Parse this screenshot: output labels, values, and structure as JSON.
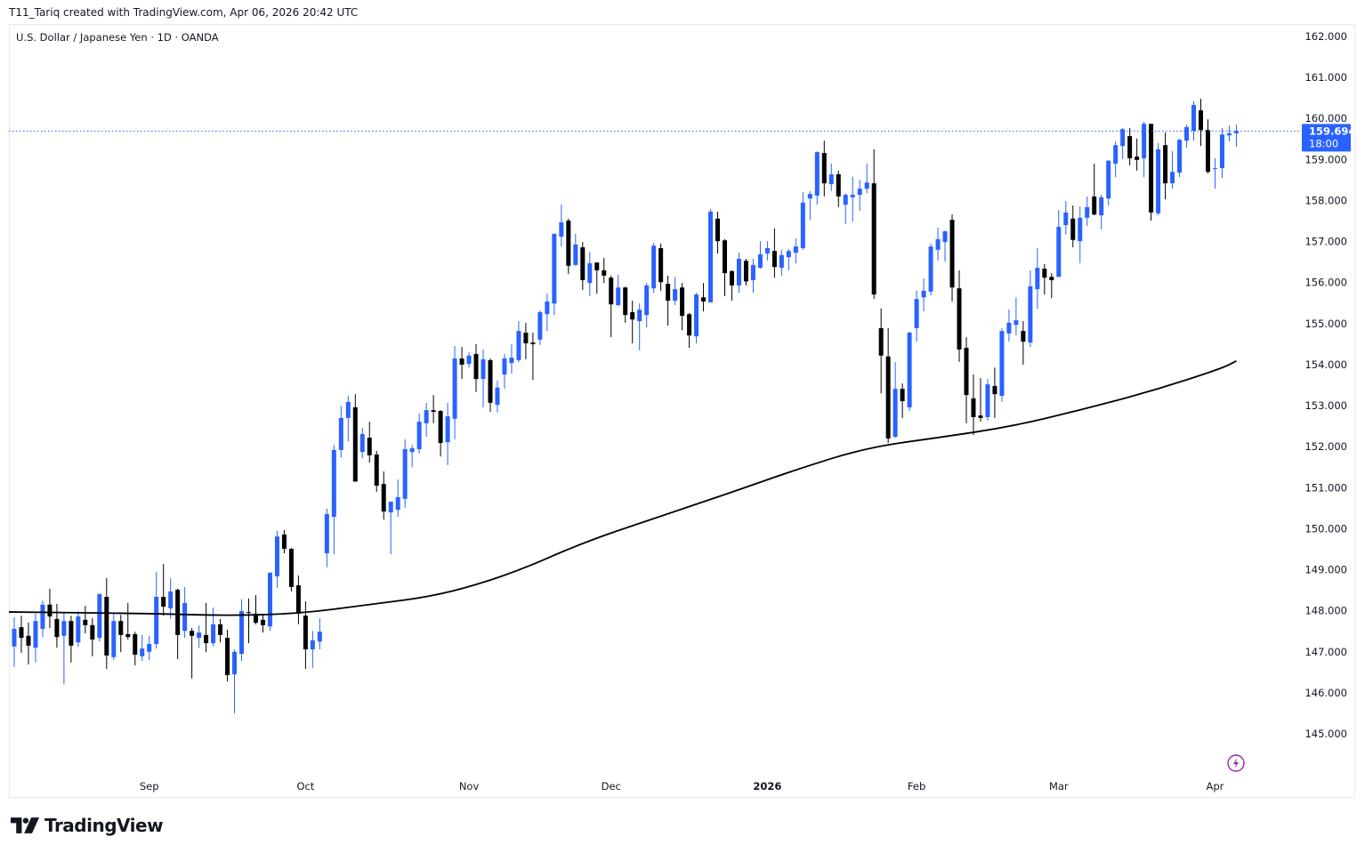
{
  "header": {
    "attribution": "T11_Tariq created with TradingView.com, Apr 06, 2026 20:42 UTC"
  },
  "symbol": {
    "title": "U.S. Dollar / Japanese Yen · 1D · OANDA"
  },
  "logo": {
    "text": "TradingView"
  },
  "current_price": {
    "value": "159.694",
    "countdown": "18:00",
    "color": "#2962ff"
  },
  "colors": {
    "up": "#2962ff",
    "down": "#000000",
    "moving_average": "#000000",
    "alert_icon": "#9c27b0"
  },
  "icons": {
    "alert": "lightning-bolt-circle-icon"
  },
  "chart_data": {
    "type": "candlestick",
    "title": "U.S. Dollar / Japanese Yen · 1D · OANDA",
    "ylim": [
      144.3,
      162.3
    ],
    "y_ticks": [
      "162.000",
      "161.000",
      "160.000",
      "159.000",
      "158.000",
      "157.000",
      "156.000",
      "155.000",
      "154.000",
      "153.000",
      "152.000",
      "151.000",
      "150.000",
      "149.000",
      "148.000",
      "147.000",
      "146.000",
      "145.000"
    ],
    "x_ticks": [
      "Sep",
      "Oct",
      "Nov",
      "Dec",
      "2026",
      "Feb",
      "Mar",
      "Apr"
    ],
    "grid": false,
    "candle_format": [
      "open",
      "high",
      "low",
      "close"
    ],
    "candles": [
      [
        147.13,
        147.84,
        146.63,
        147.56
      ],
      [
        147.6,
        147.88,
        146.97,
        147.34
      ],
      [
        147.39,
        147.71,
        146.69,
        147.15
      ],
      [
        147.1,
        147.93,
        146.74,
        147.75
      ],
      [
        147.56,
        148.25,
        147.36,
        148.15
      ],
      [
        148.15,
        148.54,
        147.58,
        147.86
      ],
      [
        147.8,
        148.17,
        147.1,
        147.36
      ],
      [
        147.39,
        147.97,
        146.21,
        147.75
      ],
      [
        147.75,
        147.88,
        146.74,
        147.15
      ],
      [
        147.23,
        147.99,
        147.12,
        147.86
      ],
      [
        147.78,
        148.12,
        147.45,
        147.65
      ],
      [
        147.65,
        147.82,
        146.89,
        147.3
      ],
      [
        147.34,
        148.41,
        147.25,
        148.41
      ],
      [
        148.34,
        148.8,
        146.58,
        146.91
      ],
      [
        146.87,
        147.95,
        146.8,
        147.75
      ],
      [
        147.75,
        147.9,
        146.99,
        147.41
      ],
      [
        147.43,
        148.19,
        147.3,
        147.36
      ],
      [
        147.43,
        147.49,
        146.67,
        146.93
      ],
      [
        146.89,
        147.41,
        146.78,
        147.08
      ],
      [
        147.0,
        147.39,
        146.8,
        147.19
      ],
      [
        147.19,
        148.95,
        147.08,
        148.34
      ],
      [
        148.34,
        149.14,
        147.88,
        148.1
      ],
      [
        148.06,
        148.8,
        147.8,
        148.47
      ],
      [
        148.51,
        148.54,
        146.82,
        147.41
      ],
      [
        147.51,
        148.58,
        147.34,
        148.19
      ],
      [
        147.51,
        147.58,
        146.35,
        147.39
      ],
      [
        147.34,
        147.64,
        147.1,
        147.47
      ],
      [
        147.41,
        148.19,
        146.99,
        147.21
      ],
      [
        147.21,
        148.08,
        147.13,
        147.67
      ],
      [
        147.67,
        147.8,
        147.23,
        147.41
      ],
      [
        147.34,
        147.54,
        146.28,
        146.43
      ],
      [
        146.45,
        147.06,
        145.5,
        147.0
      ],
      [
        146.95,
        148.28,
        146.78,
        147.99
      ],
      [
        147.97,
        148.3,
        147.21,
        147.95
      ],
      [
        147.93,
        148.38,
        147.67,
        147.71
      ],
      [
        147.78,
        147.93,
        147.47,
        147.65
      ],
      [
        147.62,
        148.93,
        147.51,
        148.93
      ],
      [
        148.84,
        149.95,
        148.56,
        149.81
      ],
      [
        149.86,
        149.97,
        149.4,
        149.51
      ],
      [
        149.51,
        149.53,
        148.47,
        148.58
      ],
      [
        148.62,
        148.86,
        147.67,
        147.93
      ],
      [
        147.88,
        148.23,
        146.58,
        147.06
      ],
      [
        147.06,
        147.51,
        146.61,
        147.28
      ],
      [
        147.25,
        147.82,
        147.06,
        147.49
      ],
      [
        149.4,
        150.49,
        149.06,
        150.36
      ],
      [
        150.29,
        152.04,
        149.38,
        151.92
      ],
      [
        151.92,
        153.0,
        151.74,
        152.7
      ],
      [
        152.7,
        153.24,
        152.13,
        153.09
      ],
      [
        152.96,
        153.28,
        151.15,
        151.15
      ],
      [
        151.87,
        152.46,
        151.72,
        152.31
      ],
      [
        152.22,
        152.61,
        151.61,
        151.79
      ],
      [
        151.81,
        151.9,
        150.9,
        151.05
      ],
      [
        151.09,
        151.4,
        150.22,
        150.42
      ],
      [
        150.4,
        150.66,
        149.38,
        150.66
      ],
      [
        150.46,
        151.2,
        150.29,
        150.77
      ],
      [
        150.73,
        152.18,
        150.51,
        151.94
      ],
      [
        151.87,
        152.04,
        151.5,
        151.96
      ],
      [
        151.94,
        152.81,
        151.83,
        152.61
      ],
      [
        152.57,
        153.07,
        152.24,
        152.89
      ],
      [
        152.89,
        153.26,
        152.57,
        152.85
      ],
      [
        152.87,
        152.89,
        151.76,
        152.09
      ],
      [
        152.11,
        153.07,
        151.55,
        152.74
      ],
      [
        152.68,
        154.45,
        152.18,
        154.15
      ],
      [
        154.15,
        154.43,
        153.65,
        154.0
      ],
      [
        154.02,
        154.3,
        153.93,
        154.22
      ],
      [
        154.26,
        154.5,
        153.33,
        153.65
      ],
      [
        153.65,
        154.37,
        152.96,
        154.13
      ],
      [
        154.11,
        154.15,
        152.85,
        153.07
      ],
      [
        153.02,
        153.61,
        152.83,
        153.44
      ],
      [
        153.76,
        154.26,
        153.41,
        154.15
      ],
      [
        154.04,
        154.5,
        153.78,
        154.17
      ],
      [
        154.11,
        155.06,
        154.06,
        154.82
      ],
      [
        154.78,
        155.02,
        154.13,
        154.52
      ],
      [
        154.54,
        154.78,
        153.63,
        154.5
      ],
      [
        154.61,
        155.32,
        154.48,
        155.28
      ],
      [
        155.23,
        155.73,
        154.82,
        155.54
      ],
      [
        155.49,
        157.19,
        155.21,
        157.19
      ],
      [
        157.12,
        157.9,
        156.88,
        157.47
      ],
      [
        157.51,
        157.56,
        156.21,
        156.41
      ],
      [
        156.43,
        157.19,
        156.41,
        156.93
      ],
      [
        156.86,
        156.99,
        155.82,
        156.06
      ],
      [
        155.99,
        156.75,
        155.67,
        156.47
      ],
      [
        156.49,
        156.49,
        155.73,
        156.3
      ],
      [
        156.3,
        156.6,
        155.99,
        156.17
      ],
      [
        156.12,
        156.17,
        154.67,
        155.47
      ],
      [
        155.45,
        156.19,
        155.43,
        155.88
      ],
      [
        155.88,
        155.9,
        155.02,
        155.21
      ],
      [
        155.28,
        155.56,
        154.52,
        155.1
      ],
      [
        155.06,
        155.49,
        154.35,
        155.34
      ],
      [
        155.21,
        155.99,
        154.91,
        155.93
      ],
      [
        155.86,
        156.97,
        155.75,
        156.9
      ],
      [
        156.84,
        156.95,
        155.8,
        156.01
      ],
      [
        155.97,
        156.17,
        154.95,
        155.56
      ],
      [
        155.56,
        156.14,
        155.45,
        155.84
      ],
      [
        155.88,
        155.99,
        154.84,
        155.19
      ],
      [
        155.23,
        155.26,
        154.41,
        154.71
      ],
      [
        154.69,
        155.75,
        154.52,
        155.71
      ],
      [
        155.64,
        155.99,
        155.3,
        155.54
      ],
      [
        155.52,
        157.79,
        155.52,
        157.73
      ],
      [
        157.56,
        157.73,
        156.71,
        157.01
      ],
      [
        157.03,
        157.06,
        155.67,
        156.23
      ],
      [
        156.28,
        156.3,
        155.56,
        155.93
      ],
      [
        155.93,
        156.73,
        155.75,
        156.58
      ],
      [
        156.53,
        156.58,
        155.93,
        156.03
      ],
      [
        156.06,
        156.58,
        155.75,
        156.43
      ],
      [
        156.36,
        157.01,
        156.34,
        156.69
      ],
      [
        156.71,
        157.01,
        156.54,
        156.84
      ],
      [
        156.77,
        157.32,
        156.12,
        156.38
      ],
      [
        156.36,
        156.8,
        156.17,
        156.67
      ],
      [
        156.62,
        156.82,
        156.3,
        156.77
      ],
      [
        156.73,
        157.08,
        156.47,
        156.88
      ],
      [
        156.84,
        158.21,
        156.8,
        157.95
      ],
      [
        158.05,
        158.23,
        157.53,
        158.16
      ],
      [
        158.12,
        159.2,
        157.9,
        159.18
      ],
      [
        159.16,
        159.46,
        158.1,
        158.42
      ],
      [
        158.4,
        158.9,
        158.23,
        158.64
      ],
      [
        158.64,
        158.73,
        157.84,
        158.1
      ],
      [
        157.9,
        158.18,
        157.43,
        158.14
      ],
      [
        158.08,
        158.58,
        157.49,
        158.14
      ],
      [
        158.14,
        158.51,
        157.75,
        158.29
      ],
      [
        158.29,
        158.9,
        158.18,
        158.44
      ],
      [
        158.42,
        159.25,
        155.6,
        155.71
      ],
      [
        154.89,
        155.37,
        153.3,
        154.22
      ],
      [
        154.2,
        154.89,
        152.09,
        152.2
      ],
      [
        152.24,
        154.06,
        152.22,
        153.41
      ],
      [
        153.41,
        153.54,
        152.7,
        153.11
      ],
      [
        152.96,
        154.8,
        152.87,
        154.78
      ],
      [
        154.89,
        155.8,
        154.56,
        155.6
      ],
      [
        155.64,
        156.1,
        155.3,
        155.8
      ],
      [
        155.78,
        156.95,
        155.69,
        156.88
      ],
      [
        156.8,
        157.34,
        156.54,
        157.06
      ],
      [
        156.99,
        157.27,
        156.51,
        157.25
      ],
      [
        157.53,
        157.66,
        155.54,
        155.88
      ],
      [
        155.86,
        156.3,
        154.07,
        154.37
      ],
      [
        154.41,
        154.67,
        152.57,
        153.26
      ],
      [
        153.18,
        153.76,
        152.28,
        152.72
      ],
      [
        152.76,
        153.67,
        152.61,
        152.7
      ],
      [
        152.72,
        153.65,
        152.63,
        153.52
      ],
      [
        153.48,
        153.93,
        152.7,
        153.28
      ],
      [
        153.24,
        154.89,
        153.09,
        154.82
      ],
      [
        154.76,
        155.34,
        154.56,
        155.02
      ],
      [
        154.97,
        155.64,
        154.71,
        155.08
      ],
      [
        154.82,
        155.06,
        154.0,
        154.56
      ],
      [
        154.54,
        156.3,
        154.43,
        155.91
      ],
      [
        155.84,
        156.84,
        155.36,
        156.36
      ],
      [
        156.34,
        156.45,
        155.71,
        156.12
      ],
      [
        156.14,
        156.23,
        155.62,
        156.06
      ],
      [
        156.14,
        157.77,
        156.14,
        157.36
      ],
      [
        157.4,
        157.99,
        157.17,
        157.71
      ],
      [
        157.56,
        157.88,
        156.86,
        157.04
      ],
      [
        157.01,
        157.86,
        156.47,
        157.58
      ],
      [
        157.58,
        158.1,
        157.38,
        157.84
      ],
      [
        158.1,
        158.9,
        157.64,
        157.66
      ],
      [
        157.64,
        158.14,
        157.3,
        158.08
      ],
      [
        158.05,
        158.99,
        157.88,
        158.97
      ],
      [
        158.9,
        159.44,
        158.57,
        159.35
      ],
      [
        159.33,
        159.77,
        159.01,
        159.74
      ],
      [
        159.57,
        159.77,
        158.86,
        159.03
      ],
      [
        159.07,
        159.51,
        158.73,
        158.99
      ],
      [
        159.03,
        159.92,
        158.57,
        159.87
      ],
      [
        159.87,
        159.87,
        157.51,
        157.71
      ],
      [
        157.69,
        159.4,
        157.64,
        159.25
      ],
      [
        159.35,
        159.66,
        158.03,
        158.42
      ],
      [
        158.42,
        159.2,
        158.29,
        158.7
      ],
      [
        158.68,
        159.51,
        158.57,
        159.48
      ],
      [
        159.46,
        159.85,
        159.29,
        159.79
      ],
      [
        159.7,
        160.42,
        159.46,
        160.33
      ],
      [
        160.2,
        160.48,
        159.33,
        159.72
      ],
      [
        159.72,
        159.98,
        158.66,
        158.7
      ],
      [
        158.77,
        159.03,
        158.29,
        158.79
      ],
      [
        158.79,
        159.77,
        158.55,
        159.61
      ],
      [
        159.59,
        159.83,
        159.44,
        159.64
      ],
      [
        159.64,
        159.85,
        159.31,
        159.694
      ]
    ],
    "moving_average": {
      "sample_every_n_candles": 10,
      "values": [
        147.97,
        147.95,
        147.93,
        147.88,
        147.93,
        148.15,
        148.38,
        148.9,
        149.66,
        150.25,
        150.83,
        151.44,
        151.98,
        152.22,
        152.48,
        152.89,
        153.35,
        153.91
      ],
      "last_value": 154.09
    }
  }
}
